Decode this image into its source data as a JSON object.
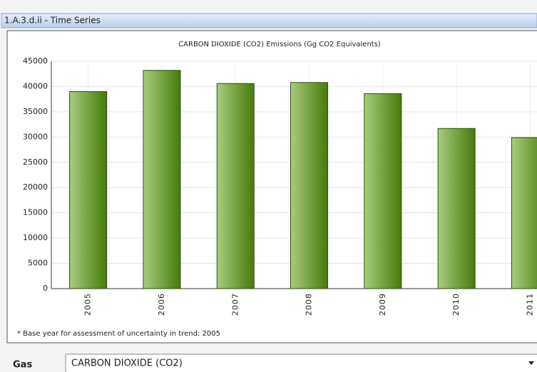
{
  "window": {
    "title": "1.A.3.d.ii - Time Series"
  },
  "chart_data": {
    "type": "bar",
    "title": "CARBON DIOXIDE (CO2) Emissions (Gg CO2 Equivalents)",
    "categories": [
      "2005",
      "2006",
      "2007",
      "2008",
      "2009",
      "2010",
      "2011"
    ],
    "values": [
      39000,
      43200,
      40600,
      40800,
      38600,
      31700,
      29900
    ],
    "color": "#5a8a1e",
    "ylim": [
      0,
      45000
    ],
    "yticks": [
      0,
      5000,
      10000,
      15000,
      20000,
      25000,
      30000,
      35000,
      40000,
      45000
    ],
    "grid": true
  },
  "footnote": "* Base year for assessment of uncertainty in trend: 2005",
  "form": {
    "label": "Gas",
    "selected": "CARBON DIOXIDE (CO2)"
  }
}
